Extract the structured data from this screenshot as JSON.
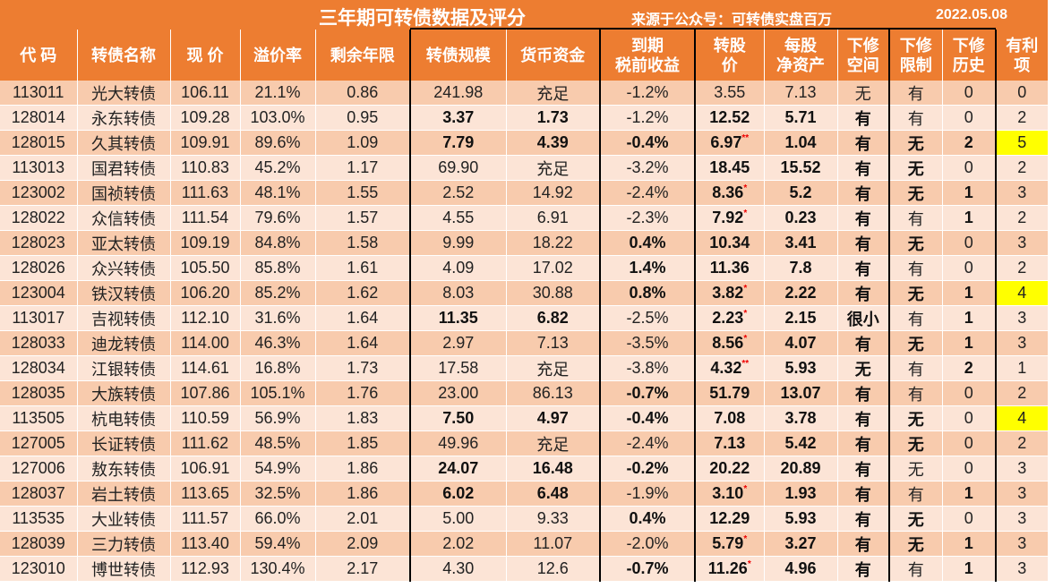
{
  "title": "三年期可转债数据及评分",
  "source": "来源于公众号：可转债实盘百万",
  "date": "2022.05.08",
  "columns": [
    "代 码",
    "转债名称",
    "现 价",
    "溢价率",
    "剩余年限",
    "转债规模",
    "货币资金",
    "到期\n税前收益",
    "转股\n价",
    "每股\n净资产",
    "下修\n空间",
    "下修\n限制",
    "下修\n历史",
    "有利\n项"
  ],
  "highlight_color": "#ffff00",
  "rows": [
    {
      "cells": [
        "113011",
        "光大转债",
        "106.11",
        "21.1%",
        "0.86",
        "241.98",
        "充足",
        "-1.2%",
        "3.55",
        "7.13",
        "无",
        "有",
        "0",
        "0"
      ],
      "bold": [],
      "stars": "",
      "hl": false
    },
    {
      "cells": [
        "128014",
        "永东转债",
        "109.28",
        "103.0%",
        "0.95",
        "3.37",
        "1.73",
        "-1.2%",
        "12.52",
        "5.71",
        "有",
        "有",
        "0",
        "2"
      ],
      "bold": [
        5,
        6,
        8,
        9,
        10
      ],
      "stars": "",
      "hl": false
    },
    {
      "cells": [
        "128015",
        "久其转债",
        "109.91",
        "89.6%",
        "1.09",
        "7.79",
        "4.39",
        "-0.4%",
        "6.97",
        "1.04",
        "有",
        "无",
        "2",
        "5"
      ],
      "bold": [
        5,
        6,
        7,
        8,
        9,
        10,
        11,
        12
      ],
      "stars": "**",
      "hl": true
    },
    {
      "cells": [
        "113013",
        "国君转债",
        "110.83",
        "45.2%",
        "1.17",
        "69.90",
        "充足",
        "-3.2%",
        "18.45",
        "15.52",
        "有",
        "无",
        "0",
        "2"
      ],
      "bold": [
        8,
        9,
        10,
        11
      ],
      "stars": "",
      "hl": false
    },
    {
      "cells": [
        "123002",
        "国祯转债",
        "111.63",
        "48.1%",
        "1.55",
        "2.52",
        "14.92",
        "-2.4%",
        "8.36",
        "5.2",
        "有",
        "无",
        "1",
        "3"
      ],
      "bold": [
        8,
        9,
        10,
        11,
        12
      ],
      "stars": "*",
      "hl": false
    },
    {
      "cells": [
        "128022",
        "众信转债",
        "111.54",
        "79.6%",
        "1.57",
        "4.55",
        "6.91",
        "-2.3%",
        "7.92",
        "0.23",
        "有",
        "有",
        "1",
        "2"
      ],
      "bold": [
        8,
        9,
        10,
        12
      ],
      "stars": "*",
      "hl": false
    },
    {
      "cells": [
        "128023",
        "亚太转债",
        "109.19",
        "84.8%",
        "1.58",
        "9.99",
        "18.22",
        "0.4%",
        "10.34",
        "3.41",
        "有",
        "无",
        "0",
        "3"
      ],
      "bold": [
        7,
        8,
        9,
        10,
        11
      ],
      "stars": "",
      "hl": false
    },
    {
      "cells": [
        "128026",
        "众兴转债",
        "105.50",
        "85.8%",
        "1.61",
        "4.09",
        "17.02",
        "1.4%",
        "11.36",
        "7.8",
        "有",
        "有",
        "0",
        "2"
      ],
      "bold": [
        7,
        8,
        9,
        10
      ],
      "stars": "",
      "hl": false
    },
    {
      "cells": [
        "123004",
        "铁汉转债",
        "106.20",
        "85.2%",
        "1.62",
        "8.03",
        "30.88",
        "0.8%",
        "3.82",
        "2.22",
        "有",
        "无",
        "1",
        "4"
      ],
      "bold": [
        7,
        8,
        9,
        10,
        11,
        12
      ],
      "stars": "*",
      "hl": true
    },
    {
      "cells": [
        "113017",
        "吉视转债",
        "112.10",
        "31.6%",
        "1.64",
        "11.35",
        "6.82",
        "-2.5%",
        "2.23",
        "2.15",
        "很小",
        "有",
        "1",
        "3"
      ],
      "bold": [
        5,
        6,
        8,
        9,
        10,
        12
      ],
      "stars": "*",
      "hl": false
    },
    {
      "cells": [
        "128033",
        "迪龙转债",
        "114.00",
        "46.3%",
        "1.64",
        "2.97",
        "7.13",
        "-3.5%",
        "8.56",
        "4.07",
        "有",
        "无",
        "1",
        "3"
      ],
      "bold": [
        8,
        9,
        10,
        11,
        12
      ],
      "stars": "*",
      "hl": false
    },
    {
      "cells": [
        "128034",
        "江银转债",
        "114.61",
        "16.8%",
        "1.73",
        "17.58",
        "充足",
        "-3.8%",
        "4.32",
        "5.93",
        "无",
        "有",
        "2",
        "1"
      ],
      "bold": [
        8,
        9,
        10,
        12
      ],
      "stars": "**",
      "hl": false
    },
    {
      "cells": [
        "128035",
        "大族转债",
        "107.86",
        "105.1%",
        "1.76",
        "23.00",
        "86.13",
        "-0.7%",
        "51.79",
        "13.07",
        "有",
        "有",
        "0",
        "2"
      ],
      "bold": [
        7,
        8,
        9,
        10
      ],
      "stars": "",
      "hl": false
    },
    {
      "cells": [
        "113505",
        "杭电转债",
        "110.59",
        "56.9%",
        "1.83",
        "7.50",
        "4.97",
        "-0.4%",
        "7.08",
        "3.78",
        "有",
        "无",
        "0",
        "4"
      ],
      "bold": [
        5,
        6,
        7,
        8,
        9,
        10,
        11
      ],
      "stars": "",
      "hl": true
    },
    {
      "cells": [
        "127005",
        "长证转债",
        "111.62",
        "48.5%",
        "1.85",
        "49.96",
        "充足",
        "-2.4%",
        "7.13",
        "5.42",
        "有",
        "无",
        "0",
        "2"
      ],
      "bold": [
        8,
        9,
        10,
        11
      ],
      "stars": "",
      "hl": false
    },
    {
      "cells": [
        "127006",
        "敖东转债",
        "106.91",
        "54.9%",
        "1.86",
        "24.07",
        "16.48",
        "-0.2%",
        "20.22",
        "20.89",
        "有",
        "无",
        "0",
        "3"
      ],
      "bold": [
        5,
        6,
        7,
        8,
        9,
        10
      ],
      "stars": "",
      "hl": false
    },
    {
      "cells": [
        "128037",
        "岩土转债",
        "113.65",
        "32.5%",
        "1.86",
        "6.02",
        "6.48",
        "-1.9%",
        "3.10",
        "1.93",
        "有",
        "有",
        "1",
        "3"
      ],
      "bold": [
        5,
        6,
        8,
        9,
        10,
        12
      ],
      "stars": "*",
      "hl": false
    },
    {
      "cells": [
        "113535",
        "大业转债",
        "111.57",
        "66.0%",
        "2.01",
        "5.00",
        "9.33",
        "0.4%",
        "12.29",
        "5.93",
        "有",
        "无",
        "0",
        "3"
      ],
      "bold": [
        7,
        8,
        9,
        10,
        11
      ],
      "stars": "",
      "hl": false
    },
    {
      "cells": [
        "128039",
        "三力转债",
        "113.40",
        "59.4%",
        "2.09",
        "2.02",
        "11.07",
        "-2.0%",
        "5.79",
        "3.27",
        "有",
        "无",
        "1",
        "3"
      ],
      "bold": [
        8,
        9,
        10,
        11,
        12
      ],
      "stars": "*",
      "hl": false
    },
    {
      "cells": [
        "123010",
        "博世转债",
        "112.93",
        "130.4%",
        "2.17",
        "4.30",
        "12.6",
        "-0.7%",
        "11.26",
        "4.96",
        "有",
        "有",
        "1",
        "3"
      ],
      "bold": [
        7,
        8,
        9,
        10,
        12
      ],
      "stars": "*",
      "hl": false
    }
  ]
}
